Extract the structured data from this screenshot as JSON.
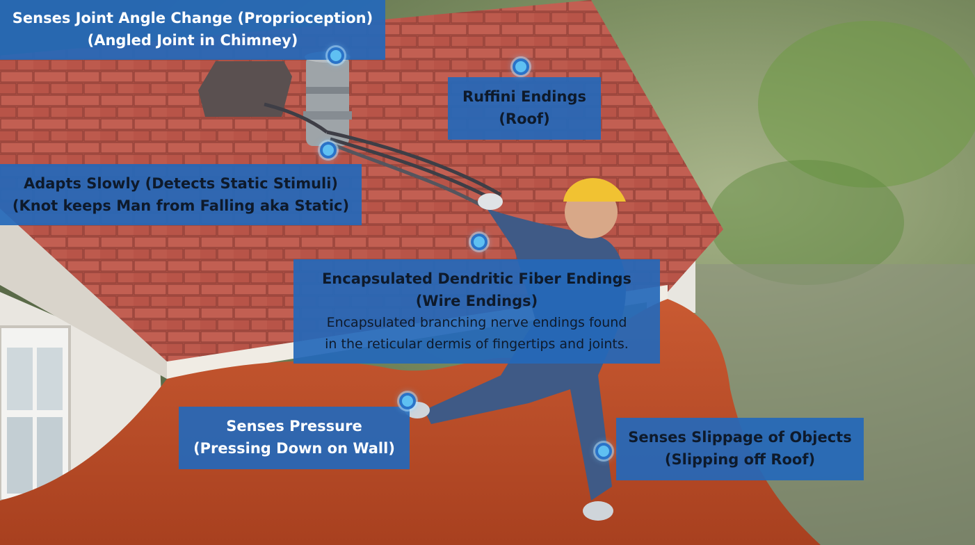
{
  "colors": {
    "label_bg": "#2468ba",
    "label_text_light": "#ffffff",
    "label_text_dark": "#0e1a2b",
    "dot_fill": "#5fc0f2",
    "dot_ring": "#2a73c8"
  },
  "illustration": {
    "subjects": [
      "house-roof",
      "chimney",
      "wires",
      "worker-with-helmet",
      "orange-tarp"
    ]
  },
  "labels": {
    "joint_angle": {
      "line1": "Senses Joint Angle Change (Proprioception)",
      "line2": "(Angled Joint in Chimney)"
    },
    "ruffini": {
      "line1": "Ruffini Endings",
      "line2": "(Roof)"
    },
    "adapts_slowly": {
      "line1": "Adapts Slowly (Detects Static Stimuli)",
      "line2": "(Knot keeps Man from Falling aka Static)"
    },
    "encapsulated": {
      "line1": "Encapsulated Dendritic Fiber Endings",
      "line2": "(Wire Endings)",
      "desc1": "Encapsulated branching nerve endings found",
      "desc2": "in the reticular dermis of fingertips and joints."
    },
    "pressure": {
      "line1": "Senses Pressure",
      "line2": "(Pressing Down on Wall)"
    },
    "slippage": {
      "line1": "Senses Slippage of Objects",
      "line2": "(Slipping off Roof)"
    }
  }
}
